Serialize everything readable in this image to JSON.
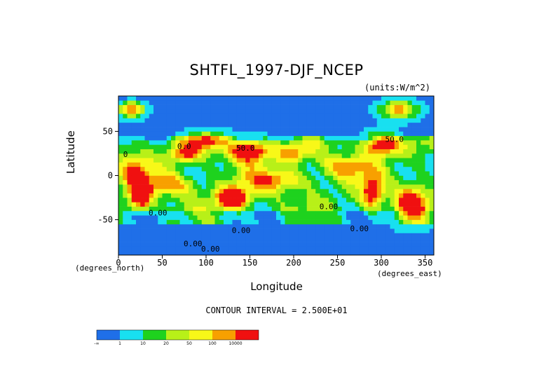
{
  "chart_data": {
    "type": "heatmap",
    "title": "SHTFL_1997-DJF_NCEP",
    "units_note": "(units:W/m^2)",
    "xlabel": "Longitude",
    "ylabel": "Latitude",
    "x_unit_label": "(degrees_east)",
    "y_unit_label": "(degrees_north)",
    "xlim": [
      0,
      360
    ],
    "ylim": [
      -90,
      90
    ],
    "x_ticks": [
      0,
      50,
      100,
      150,
      200,
      250,
      300,
      350
    ],
    "y_ticks": [
      50,
      0,
      -50
    ],
    "contour_interval_text": "CONTOUR INTERVAL = 2.500E+01",
    "contour_labels": [
      {
        "lon": 75,
        "lat": 30,
        "text": "0.0"
      },
      {
        "lon": 145,
        "lat": 28,
        "text": "50.0"
      },
      {
        "lon": 315,
        "lat": 38,
        "text": "50.0"
      },
      {
        "lon": 8,
        "lat": 21,
        "text": "0"
      },
      {
        "lon": 45,
        "lat": -45,
        "text": "0.00"
      },
      {
        "lon": 240,
        "lat": -38,
        "text": "0.00"
      },
      {
        "lon": 275,
        "lat": -63,
        "text": "0.00"
      },
      {
        "lon": 140,
        "lat": -65,
        "text": "0.00"
      },
      {
        "lon": 85,
        "lat": -80,
        "text": "0.00"
      },
      {
        "lon": 105,
        "lat": -86,
        "text": "0.00"
      }
    ],
    "color_scale": {
      "colors": [
        "#1f6fe8",
        "#18e0f0",
        "#1ed21e",
        "#b8f018",
        "#f8f818",
        "#f8a000",
        "#f01010"
      ],
      "labels": [
        "-∞",
        "1",
        "10",
        "20",
        "50",
        "100",
        "10000"
      ]
    }
  }
}
